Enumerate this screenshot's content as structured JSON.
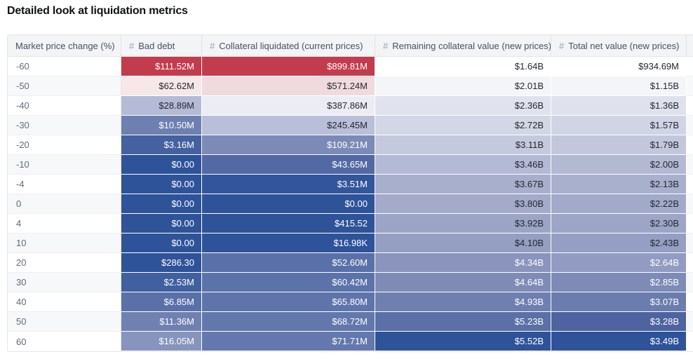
{
  "title": "Detailed look at liquidation metrics",
  "colors": {
    "heat_negative_max": "#C33C4E",
    "heat_positive_max": "#2F5399",
    "header_bg": "#F3F4F6",
    "header_text": "#4A4F63",
    "hash_icon": "#9CA1B2",
    "row_label_text": "#646979",
    "dark_cell_text": "#24272F",
    "light_cell_text": "#FFFFFF"
  },
  "table": {
    "columns": [
      {
        "key": "price-change",
        "label": "Market price change (%)",
        "hash": false
      },
      {
        "key": "bad-debt",
        "label": "Bad debt",
        "hash": true
      },
      {
        "key": "collateral-liquidated",
        "label": "Collateral liquidated (current prices)",
        "hash": true
      },
      {
        "key": "remaining-collateral",
        "label": "Remaining collateral value (new prices)",
        "hash": true
      },
      {
        "key": "total-net-value",
        "label": "Total net value (new prices)",
        "hash": true
      }
    ],
    "rows": [
      {
        "change": "-60",
        "cells": [
          {
            "v": "$111.52M",
            "bg": "#C33C4E",
            "fg": "#FFFFFF"
          },
          {
            "v": "$899.81M",
            "bg": "#C33C4E",
            "fg": "#FFFFFF"
          },
          {
            "v": "$1.64B",
            "bg": "#FFFFFF",
            "fg": "#24272F"
          },
          {
            "v": "$934.69M",
            "bg": "#FFFFFF",
            "fg": "#24272F"
          }
        ]
      },
      {
        "change": "-50",
        "cells": [
          {
            "v": "$62.62M",
            "bg": "#F6E7E9",
            "fg": "#24272F"
          },
          {
            "v": "$571.24M",
            "bg": "#F0DADD",
            "fg": "#24272F"
          },
          {
            "v": "$2.01B",
            "bg": "#F4F5F9",
            "fg": "#24272F"
          },
          {
            "v": "$1.15B",
            "bg": "#F4F5F9",
            "fg": "#24272F"
          }
        ]
      },
      {
        "change": "-40",
        "cells": [
          {
            "v": "$28.89M",
            "bg": "#B5BBD6",
            "fg": "#24272F"
          },
          {
            "v": "$387.86M",
            "bg": "#ECEDF4",
            "fg": "#24272F"
          },
          {
            "v": "$2.36B",
            "bg": "#E0E3EE",
            "fg": "#24272F"
          },
          {
            "v": "$1.36B",
            "bg": "#DFE2ED",
            "fg": "#24272F"
          }
        ]
      },
      {
        "change": "-30",
        "cells": [
          {
            "v": "$10.50M",
            "bg": "#6D80B0",
            "fg": "#FFFFFF"
          },
          {
            "v": "$245.45M",
            "bg": "#B9BFD8",
            "fg": "#24272F"
          },
          {
            "v": "$2.72B",
            "bg": "#D2D6E5",
            "fg": "#24272F"
          },
          {
            "v": "$1.57B",
            "bg": "#D0D4E4",
            "fg": "#24272F"
          }
        ]
      },
      {
        "change": "-20",
        "cells": [
          {
            "v": "$3.16M",
            "bg": "#46619F",
            "fg": "#FFFFFF"
          },
          {
            "v": "$109.21M",
            "bg": "#7C8AB7",
            "fg": "#FFFFFF"
          },
          {
            "v": "$3.11B",
            "bg": "#C4C9DD",
            "fg": "#24272F"
          },
          {
            "v": "$1.79B",
            "bg": "#C2C7DC",
            "fg": "#24272F"
          }
        ]
      },
      {
        "change": "-10",
        "cells": [
          {
            "v": "$0.00",
            "bg": "#2F5399",
            "fg": "#FFFFFF"
          },
          {
            "v": "$43.65M",
            "bg": "#5369A4",
            "fg": "#FFFFFF"
          },
          {
            "v": "$3.46B",
            "bg": "#B4BAD5",
            "fg": "#24272F"
          },
          {
            "v": "$2.00B",
            "bg": "#B3B9D3",
            "fg": "#24272F"
          }
        ]
      },
      {
        "change": "-4",
        "cells": [
          {
            "v": "$0.00",
            "bg": "#2F5399",
            "fg": "#FFFFFF"
          },
          {
            "v": "$3.51M",
            "bg": "#33559B",
            "fg": "#FFFFFF"
          },
          {
            "v": "$3.67B",
            "bg": "#A8AFCD",
            "fg": "#24272F"
          },
          {
            "v": "$2.13B",
            "bg": "#A9B0CE",
            "fg": "#24272F"
          }
        ]
      },
      {
        "change": "0",
        "cells": [
          {
            "v": "$0.00",
            "bg": "#2F5399",
            "fg": "#FFFFFF"
          },
          {
            "v": "$0.00",
            "bg": "#2F5399",
            "fg": "#FFFFFF"
          },
          {
            "v": "$3.80B",
            "bg": "#A3AACA",
            "fg": "#24272F"
          },
          {
            "v": "$2.22B",
            "bg": "#A2AACA",
            "fg": "#24272F"
          }
        ]
      },
      {
        "change": "4",
        "cells": [
          {
            "v": "$0.00",
            "bg": "#2F5399",
            "fg": "#FFFFFF"
          },
          {
            "v": "$415.52",
            "bg": "#2F5399",
            "fg": "#FFFFFF"
          },
          {
            "v": "$3.92B",
            "bg": "#9CA5C6",
            "fg": "#24272F"
          },
          {
            "v": "$2.30B",
            "bg": "#9DA6C7",
            "fg": "#24272F"
          }
        ]
      },
      {
        "change": "10",
        "cells": [
          {
            "v": "$0.00",
            "bg": "#2F5399",
            "fg": "#FFFFFF"
          },
          {
            "v": "$16.98K",
            "bg": "#2F5399",
            "fg": "#FFFFFF"
          },
          {
            "v": "$4.10B",
            "bg": "#959FC2",
            "fg": "#24272F"
          },
          {
            "v": "$2.43B",
            "bg": "#959FC3",
            "fg": "#24272F"
          }
        ]
      },
      {
        "change": "20",
        "cells": [
          {
            "v": "$286.30",
            "bg": "#2F5399",
            "fg": "#FFFFFF"
          },
          {
            "v": "$52.60M",
            "bg": "#5971A8",
            "fg": "#FFFFFF"
          },
          {
            "v": "$4.34B",
            "bg": "#8A94BC",
            "fg": "#FFFFFF"
          },
          {
            "v": "$2.64B",
            "bg": "#929BC1",
            "fg": "#FFFFFF"
          }
        ]
      },
      {
        "change": "30",
        "cells": [
          {
            "v": "$2.53M",
            "bg": "#41609F",
            "fg": "#FFFFFF"
          },
          {
            "v": "$60.42M",
            "bg": "#5C73AA",
            "fg": "#FFFFFF"
          },
          {
            "v": "$4.64B",
            "bg": "#7E8BB5",
            "fg": "#FFFFFF"
          },
          {
            "v": "$2.85B",
            "bg": "#7E8BB7",
            "fg": "#FFFFFF"
          }
        ]
      },
      {
        "change": "40",
        "cells": [
          {
            "v": "$6.85M",
            "bg": "#5970A9",
            "fg": "#FFFFFF"
          },
          {
            "v": "$65.80M",
            "bg": "#5F74AB",
            "fg": "#FFFFFF"
          },
          {
            "v": "$4.93B",
            "bg": "#6F80B0",
            "fg": "#FFFFFF"
          },
          {
            "v": "$3.07B",
            "bg": "#6B7CAE",
            "fg": "#FFFFFF"
          }
        ]
      },
      {
        "change": "50",
        "cells": [
          {
            "v": "$11.36M",
            "bg": "#7081B1",
            "fg": "#FFFFFF"
          },
          {
            "v": "$68.72M",
            "bg": "#6277AC",
            "fg": "#FFFFFF"
          },
          {
            "v": "$5.23B",
            "bg": "#5A70A6",
            "fg": "#FFFFFF"
          },
          {
            "v": "$3.28B",
            "bg": "#4E64A0",
            "fg": "#FFFFFF"
          }
        ]
      },
      {
        "change": "60",
        "cells": [
          {
            "v": "$16.05M",
            "bg": "#8794BD",
            "fg": "#FFFFFF"
          },
          {
            "v": "$71.71M",
            "bg": "#6478AD",
            "fg": "#FFFFFF"
          },
          {
            "v": "$5.52B",
            "bg": "#2F5399",
            "fg": "#FFFFFF"
          },
          {
            "v": "$3.49B",
            "bg": "#2F5399",
            "fg": "#FFFFFF"
          }
        ]
      }
    ]
  },
  "chart_data": {
    "type": "table",
    "title": "Detailed look at liquidation metrics",
    "columns": [
      "Market price change (%)",
      "Bad debt",
      "Collateral liquidated (current prices)",
      "Remaining collateral value (new prices)",
      "Total net value (new prices)"
    ],
    "rows": [
      [
        -60,
        "$111.52M",
        "$899.81M",
        "$1.64B",
        "$934.69M"
      ],
      [
        -50,
        "$62.62M",
        "$571.24M",
        "$2.01B",
        "$1.15B"
      ],
      [
        -40,
        "$28.89M",
        "$387.86M",
        "$2.36B",
        "$1.36B"
      ],
      [
        -30,
        "$10.50M",
        "$245.45M",
        "$2.72B",
        "$1.57B"
      ],
      [
        -20,
        "$3.16M",
        "$109.21M",
        "$3.11B",
        "$1.79B"
      ],
      [
        -10,
        "$0.00",
        "$43.65M",
        "$3.46B",
        "$2.00B"
      ],
      [
        -4,
        "$0.00",
        "$3.51M",
        "$3.67B",
        "$2.13B"
      ],
      [
        0,
        "$0.00",
        "$0.00",
        "$3.80B",
        "$2.22B"
      ],
      [
        4,
        "$0.00",
        "$415.52",
        "$3.92B",
        "$2.30B"
      ],
      [
        10,
        "$0.00",
        "$16.98K",
        "$4.10B",
        "$2.43B"
      ],
      [
        20,
        "$286.30",
        "$52.60M",
        "$4.34B",
        "$2.64B"
      ],
      [
        30,
        "$2.53M",
        "$60.42M",
        "$4.64B",
        "$2.85B"
      ],
      [
        40,
        "$6.85M",
        "$65.80M",
        "$4.93B",
        "$3.07B"
      ],
      [
        50,
        "$11.36M",
        "$68.72M",
        "$5.23B",
        "$3.28B"
      ],
      [
        60,
        "$16.05M",
        "$71.71M",
        "$5.52B",
        "$3.49B"
      ]
    ],
    "layout_hints": {
      "heatmap": true,
      "heatmap_negative_color": "#C33C4E",
      "heatmap_positive_color": "#2F5399",
      "value_alignment": "right"
    }
  }
}
